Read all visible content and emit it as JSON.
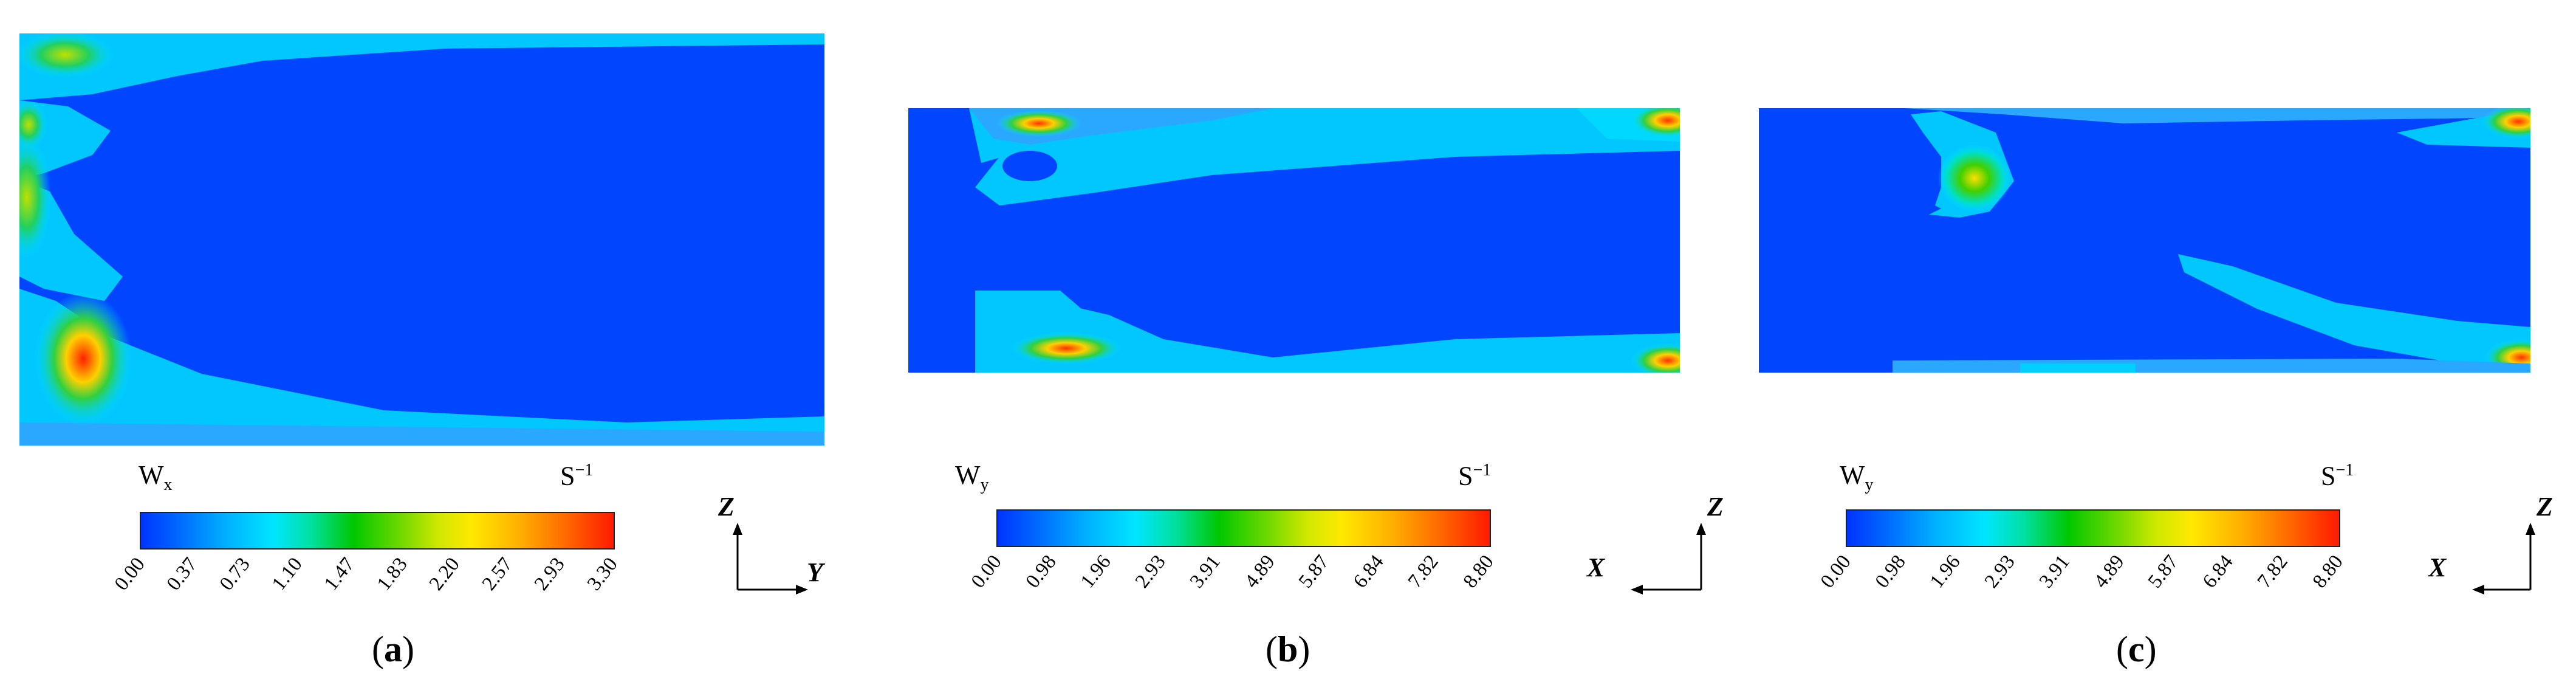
{
  "panels": [
    {
      "quantity": "W",
      "subscript": "x",
      "unit": "S",
      "unit_power": "−1",
      "ticks": [
        "0.00",
        "0.37",
        "0.73",
        "1.10",
        "1.47",
        "1.83",
        "2.20",
        "2.57",
        "2.93",
        "3.30"
      ],
      "axis_vertical": "Z",
      "axis_horizontal": "Y",
      "caption_letter": "a"
    },
    {
      "quantity": "W",
      "subscript": "y",
      "unit": "S",
      "unit_power": "−1",
      "ticks": [
        "0.00",
        "0.98",
        "1.96",
        "2.93",
        "3.91",
        "4.89",
        "5.87",
        "6.84",
        "7.82",
        "8.80"
      ],
      "axis_vertical": "Z",
      "axis_horizontal": "X",
      "caption_letter": "b"
    },
    {
      "quantity": "W",
      "subscript": "y",
      "unit": "S",
      "unit_power": "−1",
      "ticks": [
        "0.00",
        "0.98",
        "1.96",
        "2.93",
        "3.91",
        "4.89",
        "5.87",
        "6.84",
        "7.82",
        "8.80"
      ],
      "axis_vertical": "Z",
      "axis_horizontal": "X",
      "caption_letter": "c"
    }
  ],
  "colors": {
    "background_field": "#0045ff",
    "low": "#0033ff",
    "mid": "#00c800",
    "high": "#ff1a00"
  }
}
